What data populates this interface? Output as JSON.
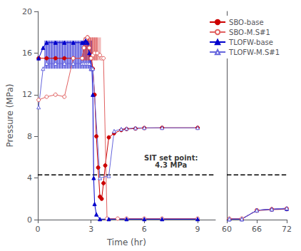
{
  "chart_data": {
    "type": "line",
    "xlabel": "Time (hr)",
    "ylabel": "Pressure (MPa)",
    "xlim": [
      [
        0,
        10
      ],
      [
        60,
        72
      ]
    ],
    "xticks": [
      [
        0,
        3,
        6,
        9
      ],
      [
        60,
        66,
        72
      ]
    ],
    "ylim": [
      0,
      20
    ],
    "yticks": [
      0,
      4,
      8,
      12,
      16,
      20
    ],
    "grid": false,
    "legend": "upper right",
    "series": [
      {
        "name": "SBO-base",
        "color": "#cc0000",
        "marker": "circle",
        "x": [
          0.05,
          0.5,
          1.0,
          1.5,
          2.0,
          2.5,
          2.6,
          2.7,
          2.8,
          2.9,
          3.0,
          3.1,
          3.2,
          3.3,
          3.4,
          3.5,
          3.6,
          3.7,
          3.8,
          4.0,
          4.3,
          4.7,
          5.0,
          5.5,
          6.0,
          7.0,
          9.0,
          60.5,
          63.0,
          66.0,
          69.0,
          72.0
        ],
        "values": [
          15.5,
          15.5,
          15.5,
          15.5,
          15.5,
          15.5,
          16.5,
          17.3,
          17.5,
          16.5,
          15.8,
          14.5,
          12.0,
          8.0,
          5.0,
          2.2,
          2.0,
          3.5,
          5.2,
          7.9,
          8.3,
          8.6,
          8.7,
          8.75,
          8.8,
          8.82,
          8.82,
          0.05,
          0.05,
          0.9,
          1.0,
          1.05
        ]
      },
      {
        "name": "SBO-M.S#1",
        "color": "#e06060",
        "marker": "open circle",
        "x": [
          0.05,
          0.5,
          1.0,
          1.5,
          2.0,
          2.5,
          2.6,
          2.7,
          2.8,
          2.9,
          3.0,
          3.1,
          3.2,
          3.35,
          3.5,
          3.6,
          3.7,
          3.9,
          4.5,
          5.0,
          6.0,
          7.0,
          9.0,
          60.5,
          63.0,
          66.0,
          69.0,
          72.0
        ],
        "values": [
          11.5,
          11.8,
          12.0,
          11.8,
          15.5,
          15.5,
          16.5,
          17.3,
          17.5,
          16.5,
          15.5,
          15.8,
          16.0,
          16.0,
          15.8,
          15.5,
          15.5,
          0.1,
          0.1,
          0.1,
          0.1,
          0.1,
          0.1,
          0.1,
          0.1,
          0.85,
          0.95,
          1.0
        ]
      },
      {
        "name": "TLOFW-base",
        "color": "#0000cc",
        "marker": "triangle",
        "x": [
          0.05,
          0.3,
          0.5,
          1.0,
          1.5,
          2.0,
          2.5,
          2.6,
          2.7,
          2.8,
          2.9,
          3.0,
          3.05,
          3.1,
          3.15,
          3.2,
          3.3,
          3.5,
          4.0,
          5.0,
          6.0,
          7.0,
          9.0,
          60.5,
          63.0,
          66.0,
          69.0,
          72.0
        ],
        "values": [
          15.5,
          16.5,
          17.0,
          17.0,
          17.0,
          17.0,
          17.0,
          17.0,
          17.2,
          17.0,
          16.0,
          14.5,
          14.5,
          12.0,
          4.0,
          1.5,
          0.5,
          0.05,
          0.05,
          0.05,
          0.05,
          0.05,
          0.05,
          0.05,
          0.05,
          0.9,
          1.0,
          1.05
        ]
      },
      {
        "name": "TLOFW-M.S#1",
        "color": "#6666dd",
        "marker": "open triangle",
        "x": [
          0.05,
          0.3,
          0.5,
          1.0,
          1.5,
          2.0,
          2.5,
          2.6,
          2.7,
          2.8,
          2.9,
          3.0,
          3.05,
          3.1,
          3.5,
          4.0,
          4.3,
          4.7,
          5.0,
          5.5,
          6.0,
          7.0,
          9.0,
          60.5,
          63.0,
          66.0,
          69.0,
          72.0
        ],
        "values": [
          10.8,
          14.5,
          15.0,
          15.0,
          15.0,
          15.0,
          15.0,
          15.0,
          15.0,
          15.0,
          15.0,
          14.5,
          14.5,
          14.5,
          4.0,
          4.2,
          8.5,
          8.7,
          8.75,
          8.8,
          8.82,
          8.82,
          8.82,
          0.05,
          0.05,
          0.9,
          1.0,
          1.1
        ]
      },
      {
        "type": "spikes",
        "color": "#0000cc",
        "low": 14.5,
        "high": 17.2,
        "x": [
          0.4,
          0.455,
          0.51,
          0.565,
          0.62,
          0.675,
          0.73,
          0.785,
          0.84,
          0.895,
          0.95,
          1.005,
          1.06,
          1.115,
          1.17,
          1.225,
          1.28,
          1.335,
          1.39,
          1.445,
          1.5,
          1.555,
          1.61,
          1.665,
          1.72,
          1.775,
          1.83,
          1.885,
          1.94,
          1.995,
          2.05,
          2.105,
          2.16,
          2.215,
          2.27,
          2.325,
          2.38,
          2.435,
          2.49,
          2.545,
          2.6,
          2.655,
          2.71,
          2.765,
          2.82,
          2.875,
          2.93,
          2.985,
          3.04
        ]
      },
      {
        "type": "spikes",
        "color": "#cc0000",
        "low": 15.3,
        "high": 17.5,
        "x": [
          2.62,
          2.685,
          2.75,
          2.815,
          2.88,
          2.945,
          3.01,
          3.075,
          3.14,
          3.205,
          3.27,
          3.335
        ]
      },
      {
        "type": "spikes",
        "color": "#e06060",
        "low": 15.3,
        "high": 17.5,
        "x": [
          2.62,
          2.685,
          2.75,
          2.815,
          2.88,
          2.945,
          3.01,
          3.075,
          3.14,
          3.205,
          3.27,
          3.335,
          3.4,
          3.465,
          3.53
        ]
      },
      {
        "type": "hline",
        "color": "#000000",
        "line_style": "dashed",
        "y": 4.3
      }
    ],
    "annotations": [
      {
        "text": "SIT set point:\n4.3 MPa",
        "x": 7.5,
        "y": 4.9
      }
    ]
  }
}
